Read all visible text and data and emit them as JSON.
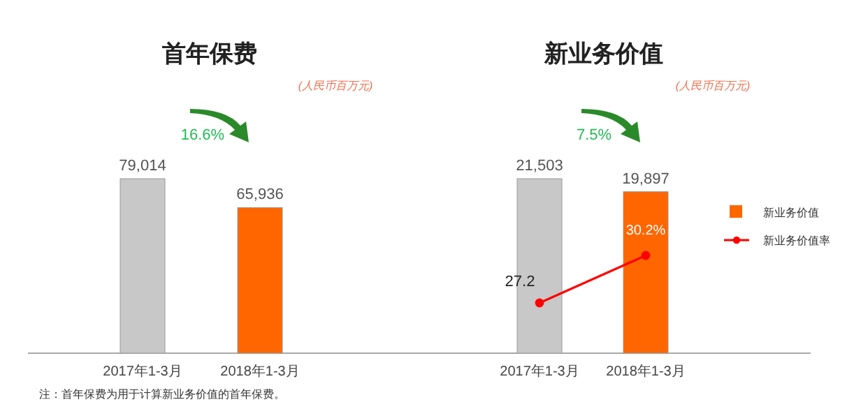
{
  "chart_data": [
    {
      "type": "bar",
      "title": "首年保费",
      "subtitle": "(人民币百万元)",
      "categories": [
        "2017年1-3月",
        "2018年1-3月"
      ],
      "values": [
        79014,
        65936
      ],
      "colors": [
        "#c8c8c8",
        "#ff6600"
      ],
      "value_labels": [
        "79,014",
        "65,936"
      ],
      "annotations": [
        "16.6%",
        "注：首年保费为用于计算新业务价值的首年保费。"
      ]
    },
    {
      "type": "bar",
      "title": "新业务价值",
      "subtitle": "(人民币百万元)",
      "categories": [
        "2017年1-3月",
        "2018年1-3月"
      ],
      "series": [
        {
          "name": "新业务价值",
          "type": "bar",
          "color": "#ff6600",
          "colors": [
            "#c8c8c8",
            "#ff6600"
          ],
          "values": [
            21503,
            19897
          ],
          "value_labels": [
            "21,503",
            "19,897"
          ]
        },
        {
          "name": "新业务价值率",
          "type": "line",
          "axis": "y2",
          "color": "#ff0000",
          "marker": "circle",
          "values": [
            27.2,
            30.2
          ],
          "value_labels": [
            "27.2",
            "30.2%"
          ]
        }
      ],
      "legend": "right",
      "annotations": [
        "7.5%"
      ]
    }
  ]
}
